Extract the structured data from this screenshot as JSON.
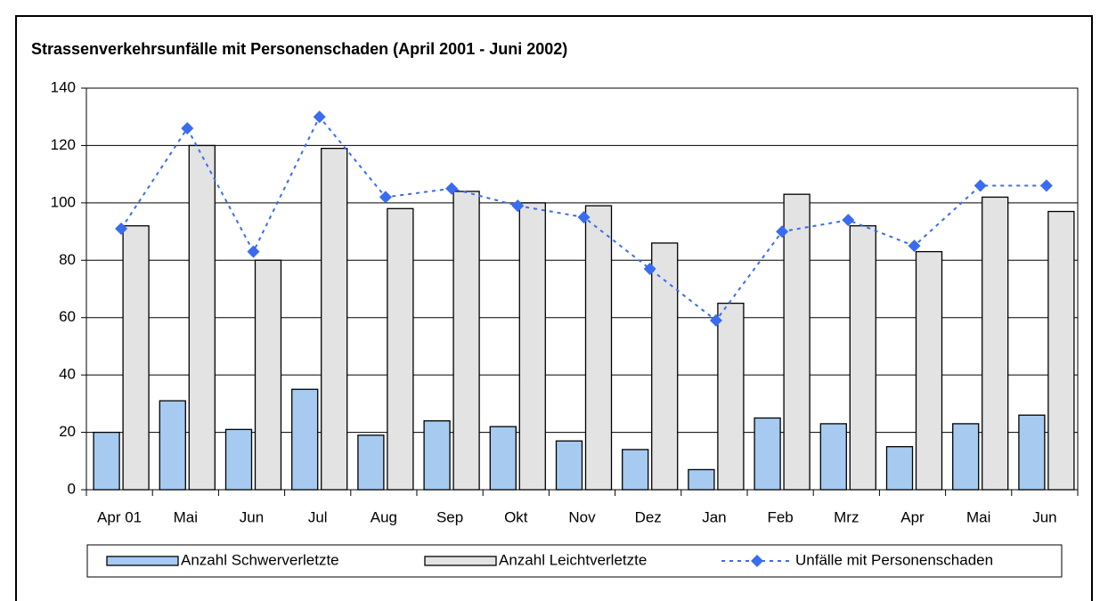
{
  "chart_data": {
    "type": "bar_line",
    "title": "Strassenverkehrsunfälle mit Personenschaden (April 2001 - Juni 2002)",
    "categories": [
      "Apr 01",
      "Mai",
      "Jun",
      "Jul",
      "Aug",
      "Sep",
      "Okt",
      "Nov",
      "Dez",
      "Jan",
      "Feb",
      "Mrz",
      "Apr",
      "Mai",
      "Jun"
    ],
    "series": [
      {
        "name": "Anzahl Schwerverletzte",
        "type": "bar",
        "color": "#a6caf0",
        "values": [
          20,
          31,
          21,
          35,
          19,
          24,
          22,
          17,
          14,
          7,
          25,
          23,
          15,
          23,
          26
        ]
      },
      {
        "name": "Anzahl Leichtverletzte",
        "type": "bar",
        "color": "#e3e3e3",
        "values": [
          92,
          120,
          80,
          119,
          98,
          104,
          100,
          99,
          86,
          65,
          103,
          92,
          83,
          102,
          97
        ]
      },
      {
        "name": "Unfälle mit Personenschaden",
        "type": "line",
        "color": "#3a6cf0",
        "values": [
          91,
          126,
          83,
          130,
          102,
          105,
          99,
          95,
          77,
          59,
          90,
          94,
          85,
          106,
          106
        ]
      }
    ],
    "ylim": [
      0,
      140
    ],
    "yticks": [
      0,
      20,
      40,
      60,
      80,
      100,
      120,
      140
    ],
    "grid": true,
    "legend": "bottom"
  }
}
